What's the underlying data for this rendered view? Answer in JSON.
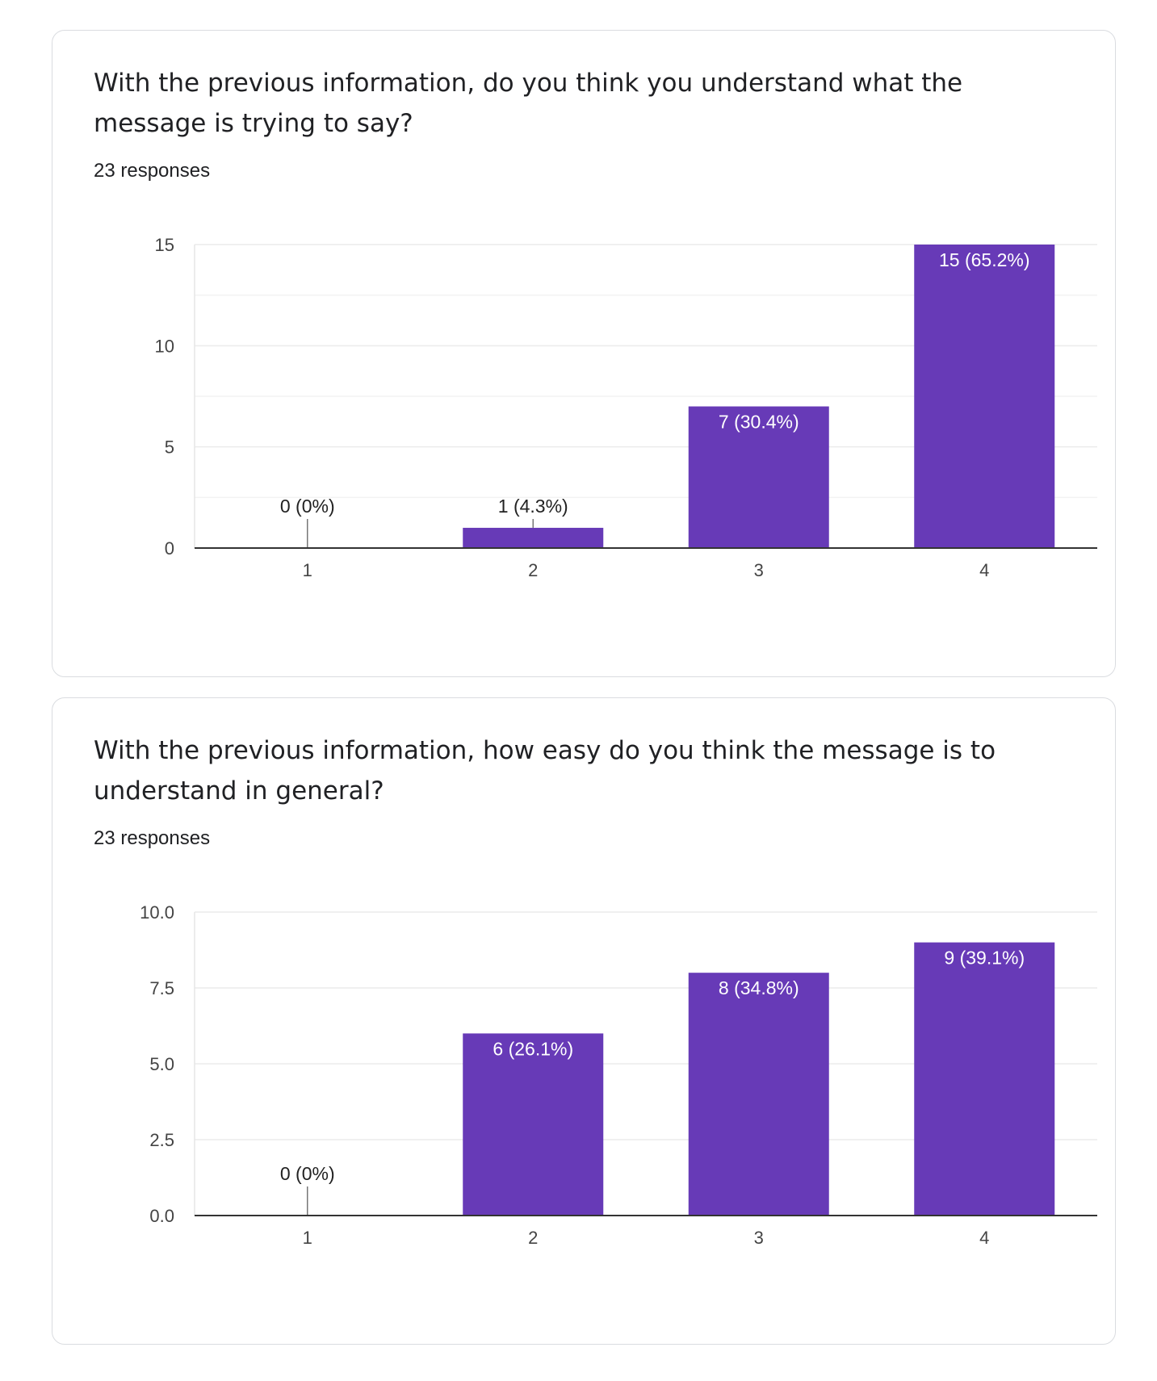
{
  "cards": [
    {
      "question": "With the previous information, do you think you understand what the message is trying to say?",
      "responses": "23 responses"
    },
    {
      "question": "With the previous information, how easy do you think the message is to understand in general?",
      "responses": "23 responses"
    }
  ],
  "colors": {
    "bar": "#673ab7",
    "grid": "#ebebeb",
    "axis": "#333333",
    "tick_text": "#444444"
  },
  "chart_data": [
    {
      "type": "bar",
      "categories": [
        "1",
        "2",
        "3",
        "4"
      ],
      "values": [
        0,
        1,
        7,
        15
      ],
      "data_labels": [
        "0 (0%)",
        "1 (4.3%)",
        "7 (30.4%)",
        "15 (65.2%)"
      ],
      "ylim": [
        0,
        15
      ],
      "yticks": [
        0,
        5,
        10,
        15
      ],
      "ytick_labels": [
        "0",
        "5",
        "10",
        "15"
      ],
      "minor_gridlines": [
        2.5,
        7.5,
        12.5
      ],
      "xlabel": "",
      "ylabel": "",
      "title": ""
    },
    {
      "type": "bar",
      "categories": [
        "1",
        "2",
        "3",
        "4"
      ],
      "values": [
        0,
        6,
        8,
        9
      ],
      "data_labels": [
        "0 (0%)",
        "6 (26.1%)",
        "8 (34.8%)",
        "9 (39.1%)"
      ],
      "ylim": [
        0,
        10
      ],
      "yticks": [
        0,
        2.5,
        5,
        7.5,
        10
      ],
      "ytick_labels": [
        "0.0",
        "2.5",
        "5.0",
        "7.5",
        "10.0"
      ],
      "minor_gridlines": [],
      "xlabel": "",
      "ylabel": "",
      "title": ""
    }
  ]
}
